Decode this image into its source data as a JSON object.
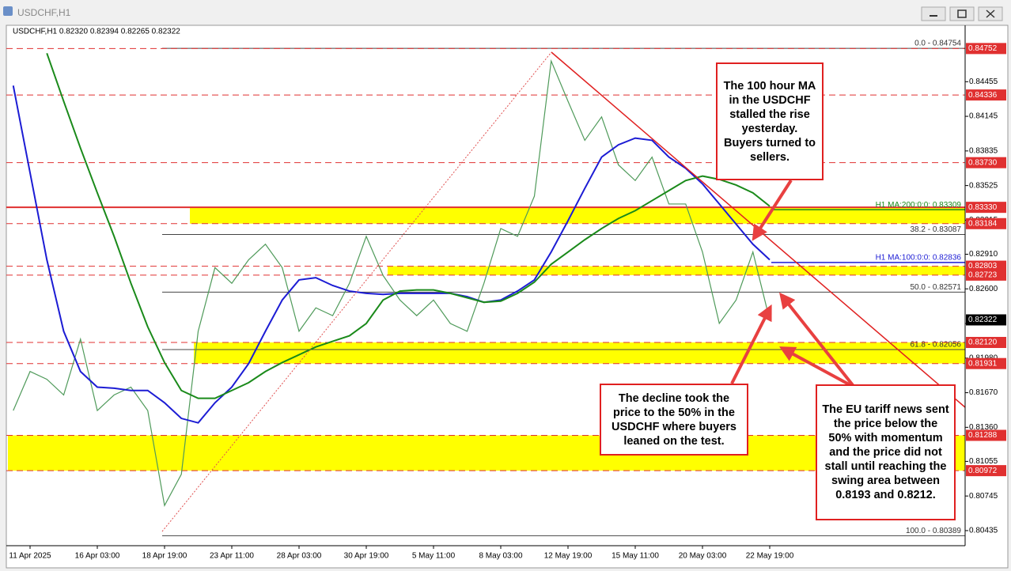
{
  "window": {
    "title": "USDCHF,H1"
  },
  "chart_data": {
    "type": "line",
    "header": "USDCHF,H1  0.82320 0.82394 0.82265 0.82322",
    "categories": [
      null,
      "11 Apr 2025",
      null,
      null,
      null,
      "16 Apr 03:00",
      null,
      null,
      null,
      "18 Apr 19:00",
      null,
      null,
      null,
      "23 Apr 11:00",
      null,
      null,
      null,
      "28 Apr 03:00",
      null,
      null,
      null,
      "30 Apr 19:00",
      null,
      null,
      null,
      "5 May 11:00",
      null,
      null,
      null,
      "8 May 03:00",
      null,
      null,
      null,
      "12 May 19:00",
      null,
      null,
      null,
      "15 May 11:00",
      null,
      null,
      null,
      "20 May 03:00",
      null,
      null,
      null,
      "22 May 19:00"
    ],
    "series": [
      {
        "color": "#4f9a5a",
        "values": [
          0.8151,
          0.8186,
          0.8179,
          0.8165,
          0.8215,
          0.8151,
          0.8165,
          0.8172,
          0.8151,
          0.8066,
          0.8094,
          0.8222,
          0.8279,
          0.8265,
          0.8286,
          0.83,
          0.8279,
          0.8222,
          0.8243,
          0.8236,
          0.8265,
          0.8307,
          0.8272,
          0.825,
          0.8236,
          0.825,
          0.8229,
          0.8222,
          0.8265,
          0.8314,
          0.8307,
          0.8343,
          0.8464,
          0.8428,
          0.8393,
          0.8414,
          0.8371,
          0.8357,
          0.8378,
          0.8336,
          0.8336,
          0.8293,
          0.8229,
          0.825,
          0.8293,
          0.8232
        ]
      },
      {
        "color": "#1c1cd4",
        "values": [
          0.8442,
          0.8364,
          0.8286,
          0.8222,
          0.8186,
          0.8172,
          0.8171,
          0.8169,
          0.8169,
          0.8158,
          0.8144,
          0.814,
          0.8158,
          0.8172,
          0.8193,
          0.8222,
          0.825,
          0.8268,
          0.827,
          0.8263,
          0.8258,
          0.8256,
          0.8255,
          0.8256,
          0.8256,
          0.8256,
          0.8256,
          0.8253,
          0.8248,
          0.825,
          0.8258,
          0.8268,
          0.8293,
          0.8321,
          0.835,
          0.8378,
          0.8389,
          0.8395,
          0.8393,
          0.8378,
          0.8368,
          0.8354,
          0.8336,
          0.8318,
          0.83,
          0.8286
        ]
      },
      {
        "color": "#1a8a1a",
        "values": [
          null,
          null,
          0.8471,
          0.8428,
          0.8386,
          0.8346,
          0.8307,
          0.8265,
          0.8226,
          0.8194,
          0.8169,
          0.8162,
          0.8162,
          0.8169,
          0.8176,
          0.8186,
          0.8194,
          0.8201,
          0.8208,
          0.8213,
          0.8218,
          0.8229,
          0.825,
          0.8258,
          0.8259,
          0.8259,
          0.8256,
          0.8252,
          0.8248,
          0.8249,
          0.8256,
          0.8266,
          0.8282,
          0.8293,
          0.8304,
          0.8314,
          0.8323,
          0.833,
          0.8339,
          0.8348,
          0.8357,
          0.8361,
          0.8358,
          0.8353,
          0.8346,
          0.8334
        ]
      }
    ],
    "ylim": [
      0.803,
      0.8496
    ],
    "yticks": [
      0.84455,
      0.84145,
      0.83835,
      0.83525,
      0.83215,
      {
        "value": 0.8291,
        "label": "0.82910"
      },
      {
        "value": 0.826,
        "label": "0.82600"
      },
      {
        "value": 0.8229,
        "label": "0.82290"
      },
      {
        "value": 0.8198,
        "label": "0.81980"
      },
      {
        "value": 0.8167,
        "label": "0.81670"
      },
      {
        "value": 0.8136,
        "label": "0.81360"
      },
      0.81055,
      0.80745,
      0.80435
    ],
    "price_levels": [
      {
        "value": 0.84752,
        "color": "#e03030",
        "line": "dashed"
      },
      {
        "value": 0.84336,
        "color": "#e03030",
        "line": "dashed"
      },
      {
        "value": 0.8373,
        "label": "0.83730",
        "color": "#e03030",
        "line": "dashed"
      },
      {
        "value": 0.8333,
        "label": "0.83330",
        "color": "#e03030",
        "line": "solid"
      },
      {
        "value": 0.83184,
        "color": "#e03030",
        "line": "dashed"
      },
      {
        "value": 0.82803,
        "color": "#e03030",
        "line": "dashed"
      },
      {
        "value": 0.82723,
        "color": "#e03030",
        "line": "dashed"
      },
      {
        "value": 0.82322,
        "color": "#000000",
        "line": "none"
      },
      {
        "value": 0.8212,
        "label": "0.82120",
        "color": "#e03030",
        "line": "dashed"
      },
      {
        "value": 0.81931,
        "color": "#e03030",
        "line": "dashed"
      },
      {
        "value": 0.81288,
        "color": "#e03030",
        "line": "dashed"
      },
      {
        "value": 0.80972,
        "color": "#e03030",
        "line": "dashed"
      }
    ],
    "zones": [
      {
        "from": 0.83184,
        "to": 0.8333,
        "color": "#ffff00"
      },
      {
        "from": 0.82723,
        "to": 0.82803,
        "color": "#ffff00"
      },
      {
        "from": 0.81931,
        "to": 0.8212,
        "color": "#ffff00"
      },
      {
        "from": 0.80972,
        "to": 0.81288,
        "color": "#ffff00"
      }
    ],
    "fib_levels": [
      {
        "value": 0.84754,
        "label": "0.0 - 0.84754"
      },
      {
        "value": 0.83087,
        "label": "38.2 - 0.83087"
      },
      {
        "value": 0.82571,
        "label": "50.0 - 0.82571"
      },
      {
        "value": 0.82056,
        "label": "61.8 - 0.82056"
      },
      {
        "value": 0.80389,
        "label": "100.0 - 0.80389"
      }
    ],
    "ma_levels": [
      {
        "value": 0.83309,
        "label": "H1 MA:200:0:0: 0.83309",
        "color": "#1a8a1a"
      },
      {
        "value": 0.82836,
        "label": "H1 MA:100:0:0: 0.82836",
        "color": "#1c1cd4"
      }
    ],
    "annotations": [
      "The 100 hour MA in the USDCHF stalled the rise yesterday. Buyers turned to sellers.",
      "The decline took the price to the 50% in the USDCHF where buyers leaned on the test.",
      "The EU tariff news sent the price below the 50% with momentum and the price did not stall until reaching the swing area between 0.8193 and 0.8212."
    ]
  }
}
